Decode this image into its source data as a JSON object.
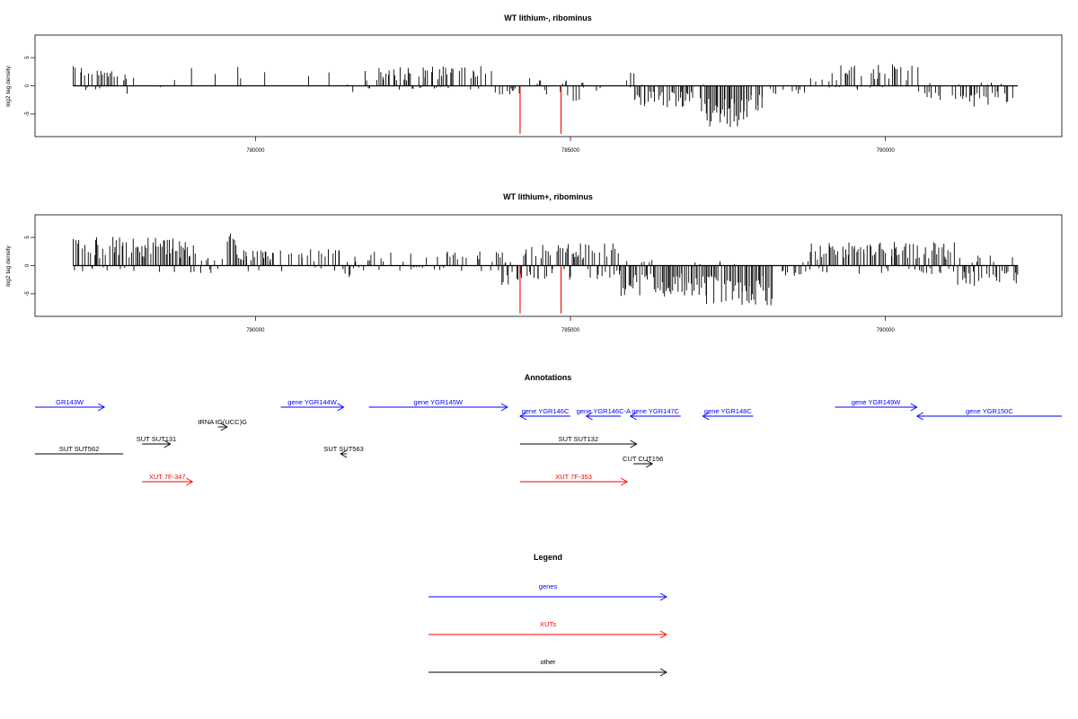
{
  "colors": {
    "gene": "#0000ff",
    "xut": "#ff0000",
    "other": "#000000",
    "marker": "#ff0000",
    "bar": "#000000"
  },
  "chart_data": [
    {
      "type": "bar",
      "title": "WT lithium-, ribominus",
      "ylabel": "log2 tag density",
      "xlim": [
        776500,
        792800
      ],
      "ylim": [
        -9,
        9
      ],
      "xticks": [
        780000,
        785000,
        790000
      ],
      "xtick_labels": [
        "780000",
        "785000",
        "790000"
      ],
      "yticks": [
        -5,
        0,
        5
      ],
      "ytick_labels": [
        "-5",
        "0",
        "5"
      ],
      "markers": [
        784200,
        784850
      ],
      "marker_depth": -8.5,
      "signal_segments": [
        {
          "from": 777100,
          "to": 777800,
          "pos": 3.5,
          "neg": 0.8,
          "density": 0.7
        },
        {
          "from": 777800,
          "to": 778150,
          "pos": 2.2,
          "neg": 1.6,
          "density": 0.5
        },
        {
          "from": 778150,
          "to": 779050,
          "pos": 3.2,
          "neg": 0.3,
          "density": 0.12
        },
        {
          "from": 779050,
          "to": 780000,
          "pos": 3.5,
          "neg": 0.6,
          "density": 0.1
        },
        {
          "from": 780000,
          "to": 781300,
          "pos": 2.8,
          "neg": 0.3,
          "density": 0.06
        },
        {
          "from": 781300,
          "to": 781700,
          "pos": 0.6,
          "neg": 1.3,
          "density": 0.3
        },
        {
          "from": 781700,
          "to": 783800,
          "pos": 3.5,
          "neg": 0.8,
          "density": 0.6
        },
        {
          "from": 783800,
          "to": 784200,
          "pos": 0.5,
          "neg": 1.6,
          "density": 0.4
        },
        {
          "from": 784200,
          "to": 784400,
          "pos": 1.5,
          "neg": 2.6,
          "density": 0.3
        },
        {
          "from": 784400,
          "to": 784950,
          "pos": 1.2,
          "neg": 1.8,
          "density": 0.4
        },
        {
          "from": 784950,
          "to": 785200,
          "pos": 0.6,
          "neg": 3.8,
          "density": 0.4
        },
        {
          "from": 785200,
          "to": 785800,
          "pos": 0.3,
          "neg": 1.0,
          "density": 0.1
        },
        {
          "from": 785800,
          "to": 786000,
          "pos": 2.5,
          "neg": 0.5,
          "density": 0.3
        },
        {
          "from": 786000,
          "to": 786950,
          "pos": 0.3,
          "neg": 3.8,
          "density": 0.85
        },
        {
          "from": 787050,
          "to": 787800,
          "pos": 0.3,
          "neg": 7.5,
          "density": 0.95
        },
        {
          "from": 787800,
          "to": 788100,
          "pos": 0.3,
          "neg": 4.5,
          "density": 0.7
        },
        {
          "from": 788100,
          "to": 788800,
          "pos": 0.4,
          "neg": 1.5,
          "density": 0.15
        },
        {
          "from": 788800,
          "to": 789200,
          "pos": 2.8,
          "neg": 0.8,
          "density": 0.5
        },
        {
          "from": 789200,
          "to": 790500,
          "pos": 3.8,
          "neg": 0.8,
          "density": 0.6
        },
        {
          "from": 790500,
          "to": 791100,
          "pos": 0.8,
          "neg": 2.5,
          "density": 0.4
        },
        {
          "from": 791100,
          "to": 792100,
          "pos": 0.6,
          "neg": 3.8,
          "density": 0.6
        }
      ]
    },
    {
      "type": "bar",
      "title": "WT lithium+, ribominus",
      "ylabel": "log2 tag density",
      "xlim": [
        776500,
        792800
      ],
      "ylim": [
        -9,
        9
      ],
      "xticks": [
        780000,
        785000,
        790000
      ],
      "xtick_labels": [
        "780000",
        "785000",
        "790000"
      ],
      "yticks": [
        -5,
        0,
        5
      ],
      "ytick_labels": [
        "-5",
        "0",
        "5"
      ],
      "markers": [
        784200,
        784850
      ],
      "marker_depth": -8.5,
      "signal_segments": [
        {
          "from": 777100,
          "to": 779050,
          "pos": 5.2,
          "neg": 1.2,
          "density": 0.9
        },
        {
          "from": 779050,
          "to": 779500,
          "pos": 1.5,
          "neg": 1.8,
          "density": 0.4
        },
        {
          "from": 779500,
          "to": 779700,
          "pos": 6.5,
          "neg": 0.5,
          "density": 0.7
        },
        {
          "from": 779700,
          "to": 781400,
          "pos": 3.0,
          "neg": 1.0,
          "density": 0.55
        },
        {
          "from": 781400,
          "to": 781500,
          "pos": 1.0,
          "neg": 3.5,
          "density": 0.6
        },
        {
          "from": 781500,
          "to": 783900,
          "pos": 2.5,
          "neg": 1.0,
          "density": 0.45
        },
        {
          "from": 783900,
          "to": 784200,
          "pos": 0.8,
          "neg": 3.5,
          "density": 0.7
        },
        {
          "from": 784200,
          "to": 785800,
          "pos": 4.0,
          "neg": 2.5,
          "density": 0.9
        },
        {
          "from": 785800,
          "to": 787000,
          "pos": 1.0,
          "neg": 5.5,
          "density": 0.95
        },
        {
          "from": 787000,
          "to": 788200,
          "pos": 0.8,
          "neg": 7.2,
          "density": 0.95
        },
        {
          "from": 788200,
          "to": 788800,
          "pos": 0.8,
          "neg": 1.8,
          "density": 0.35
        },
        {
          "from": 788800,
          "to": 791100,
          "pos": 4.2,
          "neg": 1.5,
          "density": 0.9
        },
        {
          "from": 791100,
          "to": 792100,
          "pos": 1.8,
          "neg": 3.8,
          "density": 0.7
        }
      ]
    }
  ],
  "annotations": {
    "title": "Annotations",
    "items": [
      {
        "label": "GR143W",
        "type": "gene",
        "strand": "+",
        "start": 776500,
        "end": 777600,
        "row": 0
      },
      {
        "label": "gene YGR144W",
        "type": "gene",
        "strand": "+",
        "start": 780400,
        "end": 781400,
        "row": 0
      },
      {
        "label": "gene YGR145W",
        "type": "gene",
        "strand": "+",
        "start": 781800,
        "end": 784000,
        "row": 0
      },
      {
        "label": "gene YGR149W",
        "type": "gene",
        "strand": "+",
        "start": 789200,
        "end": 790500,
        "row": 0
      },
      {
        "label": "gene YGR146C",
        "type": "gene",
        "strand": "-",
        "start": 784200,
        "end": 785000,
        "row": 1
      },
      {
        "label": "gene YGR146C-A",
        "type": "gene",
        "strand": "-",
        "start": 785250,
        "end": 785800,
        "row": 1
      },
      {
        "label": "gene YGR147C",
        "type": "gene",
        "strand": "-",
        "start": 785950,
        "end": 786750,
        "row": 1
      },
      {
        "label": "gene YGR148C",
        "type": "gene",
        "strand": "-",
        "start": 787100,
        "end": 787900,
        "row": 1
      },
      {
        "label": "gene YGR150C",
        "type": "gene",
        "strand": "-",
        "start": 790500,
        "end": 792800,
        "row": 1
      },
      {
        "label": "tRNA tG(UCC)G",
        "type": "other",
        "strand": "+",
        "start": 779400,
        "end": 779550,
        "row": 2
      },
      {
        "label": "SUT SUT131",
        "type": "other",
        "strand": "+",
        "start": 778200,
        "end": 778650,
        "row": 3
      },
      {
        "label": "SUT SUT132",
        "type": "other",
        "strand": "+",
        "start": 784200,
        "end": 786050,
        "row": 3
      },
      {
        "label": "SUT SUT562",
        "type": "other",
        "strand": "",
        "start": 776500,
        "end": 777900,
        "row": 4
      },
      {
        "label": "SUT SUT563",
        "type": "other",
        "strand": "-",
        "start": 781350,
        "end": 781450,
        "row": 4
      },
      {
        "label": "CUT CUT156",
        "type": "other",
        "strand": "+",
        "start": 786000,
        "end": 786300,
        "row": 5
      },
      {
        "label": "XUT 7F-347",
        "type": "xut",
        "strand": "+",
        "start": 778200,
        "end": 779000,
        "row": 6
      },
      {
        "label": "XUT 7F-353",
        "type": "xut",
        "strand": "+",
        "start": 784200,
        "end": 785900,
        "row": 6
      }
    ]
  },
  "legend": {
    "title": "Legend",
    "items": [
      {
        "label": "genes",
        "type": "gene"
      },
      {
        "label": "XUTs",
        "type": "xut"
      },
      {
        "label": "other",
        "type": "other"
      }
    ]
  }
}
